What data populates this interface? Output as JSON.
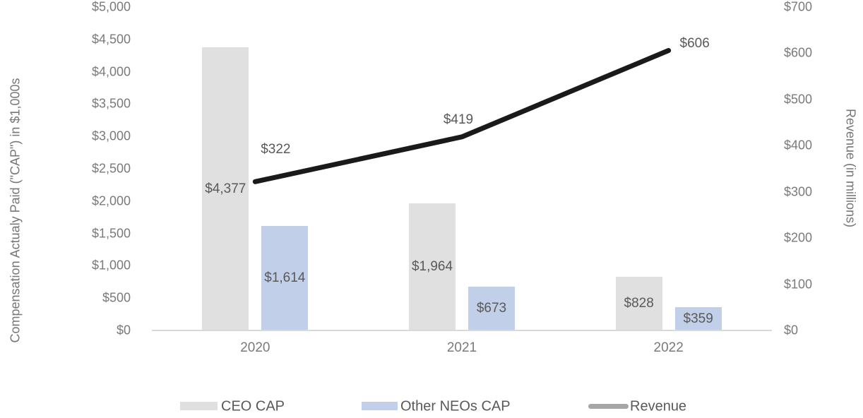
{
  "chart_data": {
    "type": "bar",
    "subtype": "grouped-bars-with-line-overlay",
    "categories": [
      "2020",
      "2021",
      "2022"
    ],
    "series": [
      {
        "name": "CEO CAP",
        "kind": "bar",
        "axis": "left",
        "values": [
          4377,
          1964,
          828
        ],
        "data_labels": [
          "$4,377",
          "$1,964",
          "$828"
        ],
        "color": "#e0e0e1"
      },
      {
        "name": "Other NEOs CAP",
        "kind": "bar",
        "axis": "left",
        "values": [
          1614,
          673,
          359
        ],
        "data_labels": [
          "$1,614",
          "$673",
          "$359"
        ],
        "color": "#c2cfe9"
      },
      {
        "name": "Revenue",
        "kind": "line",
        "axis": "right",
        "values": [
          322,
          419,
          606
        ],
        "data_labels": [
          "$322",
          "$419",
          "$606"
        ],
        "color": "#1a1a1a",
        "legend_color": "#a6a6a6"
      }
    ],
    "left_axis": {
      "title": "Compensation Actualy Paid (\"CAP\") in $1,000s",
      "min": 0,
      "max": 5000,
      "step": 500,
      "tick_labels": [
        "$0",
        "$500",
        "$1,000",
        "$1,500",
        "$2,000",
        "$2,500",
        "$3,000",
        "$3,500",
        "$4,000",
        "$4,500",
        "$5,000"
      ]
    },
    "right_axis": {
      "title": "Revenue (in millions)",
      "min": 0,
      "max": 700,
      "step": 100,
      "tick_labels": [
        "$0",
        "$100",
        "$200",
        "$300",
        "$400",
        "$500",
        "$600",
        "$700"
      ]
    },
    "grid": false,
    "legend_position": "bottom",
    "axis_line_color": "#d9d9d9"
  }
}
